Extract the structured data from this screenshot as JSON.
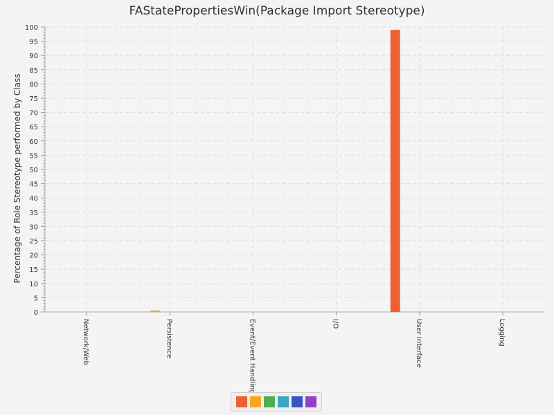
{
  "chart_data": {
    "type": "bar",
    "title": "FAStatePropertiesWin(Package Import Stereotype)",
    "ylabel": "Percentage of Role Stereotype performed by Class",
    "xlabel": "",
    "ylim": [
      0,
      100
    ],
    "ytick_step": 5,
    "grid": true,
    "legend": "bottom",
    "categories": [
      "Network/Web",
      "Persistence",
      "Event/Event Handling",
      "I/O",
      "User Interface",
      "Logging"
    ],
    "series": [
      {
        "color": "#f06030",
        "values": [
          0,
          0,
          0,
          0,
          99,
          0
        ]
      },
      {
        "color": "#f5a623",
        "values": [
          0,
          0.5,
          0,
          0,
          0,
          0
        ]
      },
      {
        "color": "#4caf50",
        "values": [
          0,
          0,
          0,
          0,
          0,
          0
        ]
      },
      {
        "color": "#3aa6c8",
        "values": [
          0,
          0,
          0,
          0,
          0,
          0
        ]
      },
      {
        "color": "#3b55c0",
        "values": [
          0,
          0,
          0,
          0,
          0,
          0
        ]
      },
      {
        "color": "#9440c8",
        "values": [
          0,
          0,
          0,
          0,
          0,
          0
        ]
      }
    ]
  }
}
